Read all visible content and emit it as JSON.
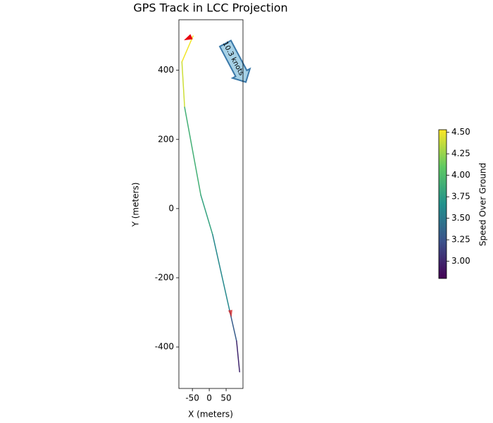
{
  "chart_data": {
    "type": "line",
    "title": "GPS Track in LCC Projection",
    "x_label": "X (meters)",
    "y_label": "Y (meters)",
    "x": [
      -48,
      -81,
      -73,
      -25,
      10,
      60,
      81,
      90
    ],
    "y": [
      499,
      424,
      293,
      39,
      -75,
      -293,
      -383,
      -472
    ],
    "speed": [
      4.5,
      4.4,
      3.9,
      3.8,
      3.6,
      3.3,
      3.0,
      2.85
    ],
    "colormap": "viridis",
    "xlim": [
      -90,
      100
    ],
    "ylim": [
      -520,
      546
    ],
    "xticks": [
      -50,
      0,
      50
    ],
    "yticks": [
      -400,
      -200,
      0,
      200,
      400
    ],
    "colorbar": {
      "label": "Speed Over Ground",
      "clim": [
        2.8,
        4.53
      ],
      "ticks": [
        {
          "value": 3,
          "label": "3.00"
        },
        {
          "value": 3.25,
          "label": "3.25"
        },
        {
          "value": 3.5,
          "label": "3.50"
        },
        {
          "value": 3.75,
          "label": "3.75"
        },
        {
          "value": 4,
          "label": "4.00"
        },
        {
          "value": 4.25,
          "label": "4.25"
        },
        {
          "value": 4.5,
          "label": "4.50"
        }
      ]
    },
    "annotation": "10.3 knots"
  }
}
